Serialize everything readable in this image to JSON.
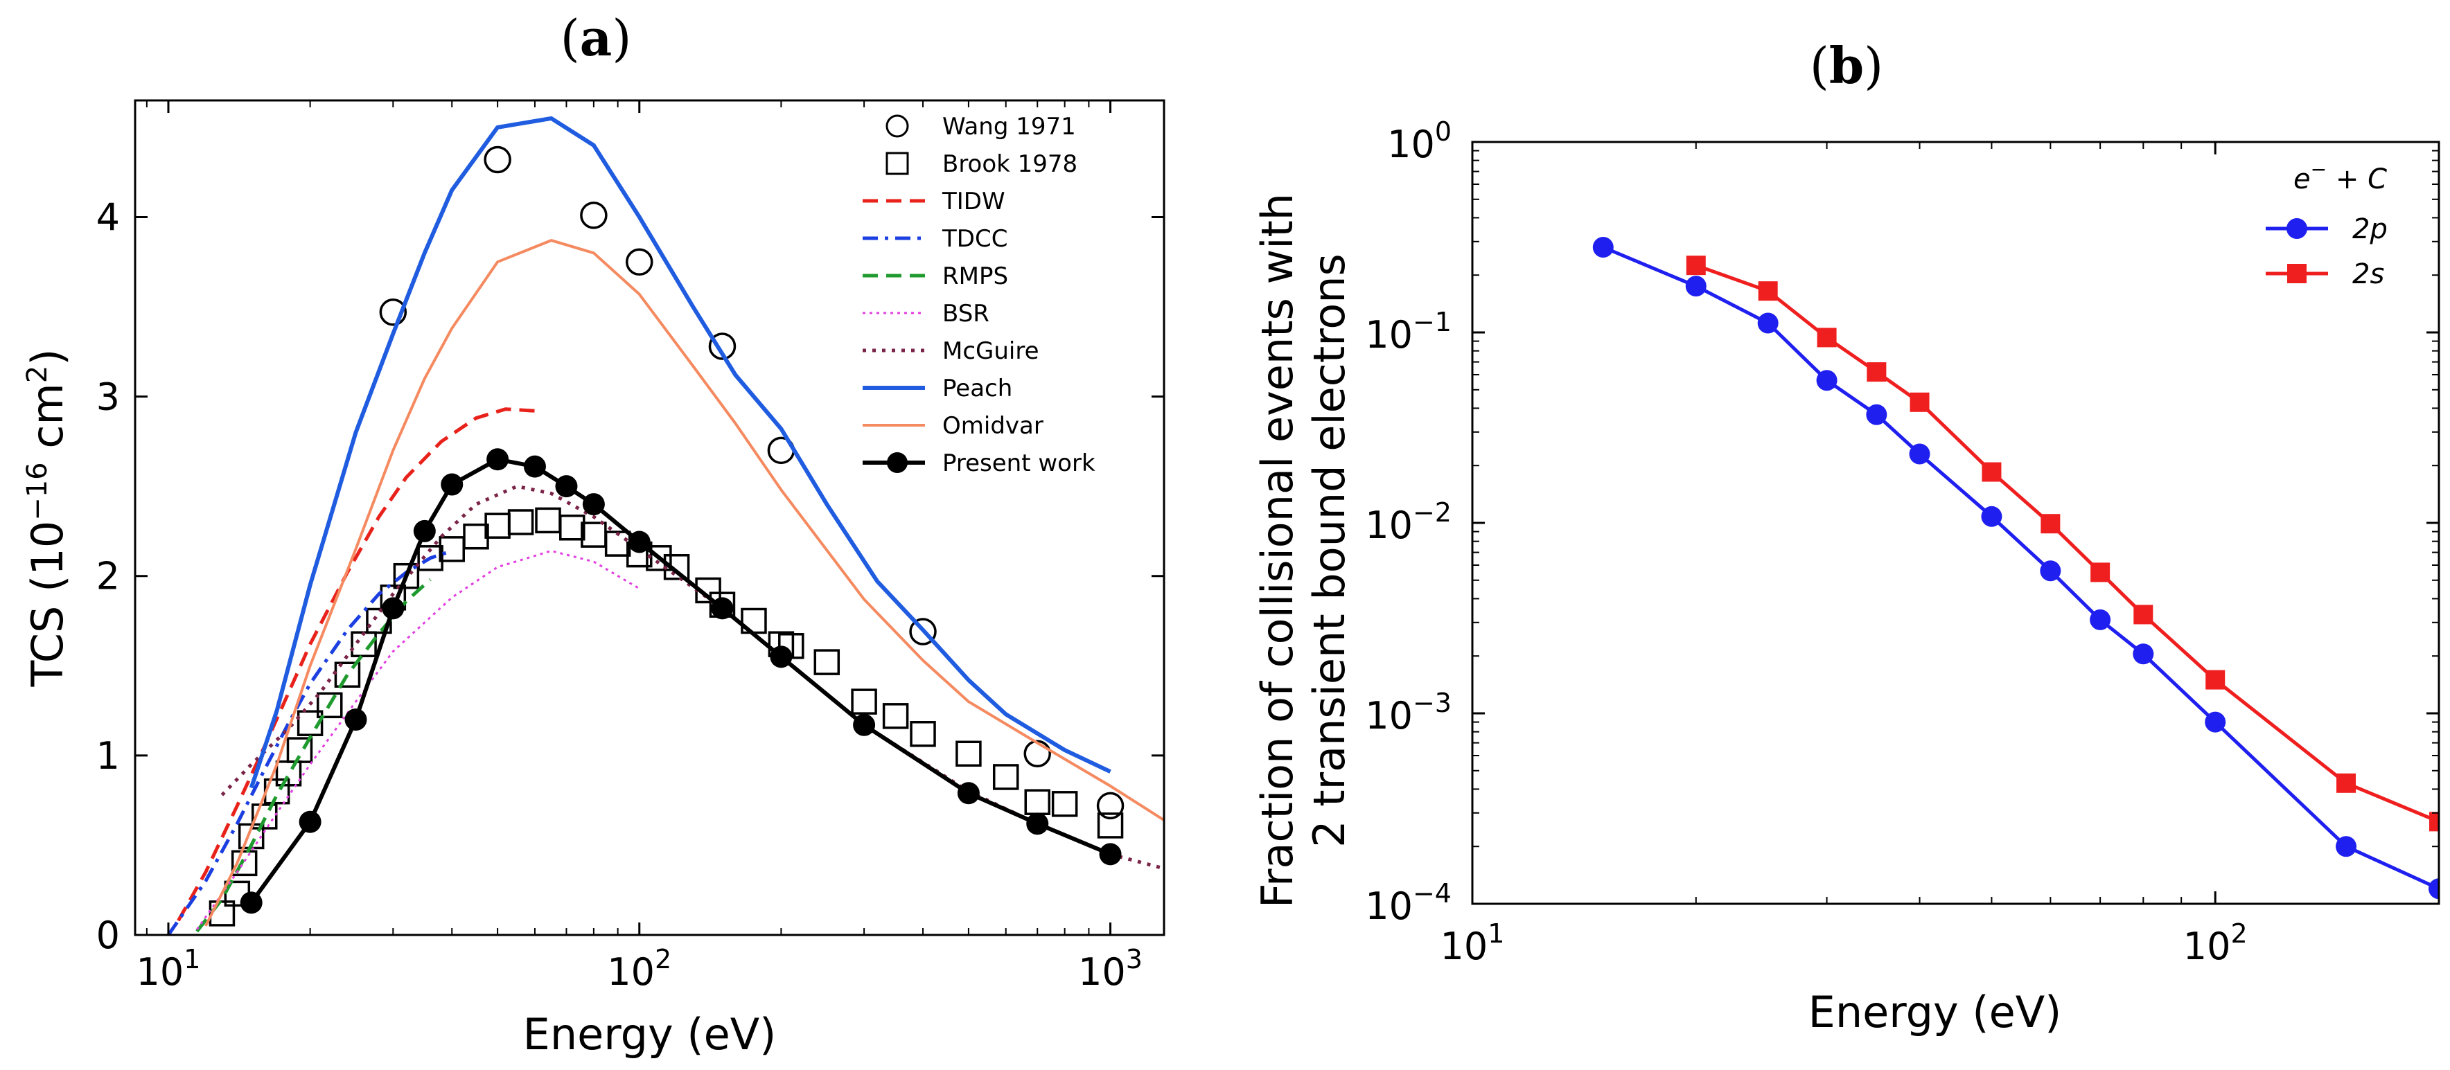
{
  "chart_data": [
    {
      "panel": "(a)",
      "panel_letter": "a",
      "type": "line",
      "xscale": "log",
      "xlim": [
        8.5,
        1300
      ],
      "ylim": [
        0,
        4.65
      ],
      "xlabel": "Energy (eV)",
      "ylabel_main": "TCS (10",
      "ylabel_exp1": "−16",
      "ylabel_mid": " cm",
      "ylabel_exp2": "2",
      "ylabel_end": ")",
      "xtick_labels": [
        {
          "value": 10,
          "base": "10",
          "exp": "1"
        },
        {
          "value": 100,
          "base": "10",
          "exp": "2"
        },
        {
          "value": 1000,
          "base": "10",
          "exp": "3"
        }
      ],
      "yticks": [
        0,
        1,
        2,
        3,
        4
      ],
      "ytick_labels": [
        "0",
        "1",
        "2",
        "3",
        "4"
      ],
      "legend_position": "top-right",
      "series": [
        {
          "name": "Wang 1971",
          "style": "open-circle",
          "color": "#000000",
          "x": [
            30,
            50,
            80,
            100,
            150,
            200,
            400,
            700,
            1000
          ],
          "y": [
            3.47,
            4.32,
            4.01,
            3.75,
            3.28,
            2.7,
            1.69,
            1.01,
            0.72
          ]
        },
        {
          "name": "Brook 1978",
          "style": "open-square",
          "color": "#000000",
          "x": [
            13,
            14,
            14.5,
            15,
            16,
            17,
            18,
            19,
            20,
            22,
            24,
            26,
            28,
            30,
            32,
            36,
            40,
            45,
            50,
            56,
            64,
            72,
            80,
            90,
            100,
            110,
            120,
            140,
            150,
            175,
            200,
            210,
            250,
            300,
            350,
            400,
            500,
            600,
            700,
            800,
            1000
          ],
          "y": [
            0.12,
            0.23,
            0.4,
            0.55,
            0.66,
            0.8,
            0.9,
            1.03,
            1.18,
            1.28,
            1.45,
            1.62,
            1.75,
            1.88,
            2.0,
            2.1,
            2.15,
            2.22,
            2.28,
            2.3,
            2.31,
            2.27,
            2.23,
            2.18,
            2.12,
            2.1,
            2.05,
            1.92,
            1.84,
            1.75,
            1.62,
            1.61,
            1.52,
            1.3,
            1.22,
            1.12,
            1.01,
            0.88,
            0.74,
            0.73,
            0.61
          ]
        },
        {
          "name": "TIDW",
          "style": "dashed",
          "color": "#e8221b",
          "x": [
            10.5,
            12,
            14,
            16,
            18,
            20,
            24,
            28,
            32,
            38,
            45,
            52,
            60
          ],
          "y": [
            0.08,
            0.35,
            0.72,
            1.05,
            1.35,
            1.62,
            2.02,
            2.33,
            2.55,
            2.75,
            2.88,
            2.93,
            2.92
          ]
        },
        {
          "name": "TDCC",
          "style": "dashdot",
          "color": "#1b3fe0",
          "x": [
            10,
            12,
            14,
            16,
            18,
            20,
            24,
            28,
            32,
            36,
            40
          ],
          "y": [
            0.0,
            0.3,
            0.62,
            0.92,
            1.18,
            1.4,
            1.7,
            1.9,
            2.02,
            2.1,
            2.14
          ]
        },
        {
          "name": "RMPS",
          "style": "dashed",
          "color": "#1f9a2e",
          "x": [
            11.5,
            13,
            15,
            17,
            20,
            24,
            28,
            32,
            36
          ],
          "y": [
            0.02,
            0.2,
            0.5,
            0.78,
            1.1,
            1.45,
            1.68,
            1.86,
            1.98
          ]
        },
        {
          "name": "BSR",
          "style": "dotted-fine",
          "color": "#e23ee0",
          "x": [
            11.5,
            14,
            17,
            20,
            25,
            30,
            40,
            50,
            65,
            80,
            100
          ],
          "y": [
            0.03,
            0.35,
            0.68,
            0.95,
            1.3,
            1.58,
            1.88,
            2.05,
            2.14,
            2.08,
            1.93
          ]
        },
        {
          "name": "McGuire",
          "style": "dotted",
          "color": "#7a2448",
          "x": [
            13,
            15,
            18,
            21,
            25,
            30,
            38,
            45,
            55,
            65,
            80,
            100,
            150,
            200,
            300,
            500,
            700,
            1000,
            1300
          ],
          "y": [
            0.78,
            0.95,
            1.15,
            1.35,
            1.62,
            1.9,
            2.22,
            2.4,
            2.5,
            2.46,
            2.33,
            2.15,
            1.82,
            1.55,
            1.17,
            0.8,
            0.62,
            0.45,
            0.37
          ]
        },
        {
          "name": "Peach",
          "style": "solid",
          "color": "#1f5ce0",
          "x": [
            15,
            17,
            20,
            25,
            30,
            35,
            40,
            50,
            65,
            80,
            100,
            130,
            160,
            200,
            250,
            320,
            400,
            500,
            600,
            800,
            1000
          ],
          "y": [
            0.82,
            1.25,
            1.95,
            2.8,
            3.35,
            3.8,
            4.15,
            4.5,
            4.55,
            4.4,
            4.0,
            3.5,
            3.12,
            2.82,
            2.4,
            1.97,
            1.7,
            1.42,
            1.23,
            1.03,
            0.91
          ]
        },
        {
          "name": "Omidvar",
          "style": "solid-thin",
          "color": "#f58a60",
          "x": [
            12,
            14,
            17,
            20,
            25,
            30,
            35,
            40,
            50,
            65,
            80,
            100,
            130,
            160,
            200,
            300,
            400,
            500,
            700,
            1000,
            1300
          ],
          "y": [
            0.05,
            0.4,
            0.95,
            1.5,
            2.15,
            2.7,
            3.1,
            3.38,
            3.75,
            3.87,
            3.8,
            3.57,
            3.17,
            2.85,
            2.48,
            1.87,
            1.53,
            1.3,
            1.07,
            0.83,
            0.64
          ]
        },
        {
          "name": "Present work",
          "style": "solid-filled-circle",
          "color": "#000000",
          "x": [
            15,
            20,
            25,
            30,
            35,
            40,
            50,
            60,
            70,
            80,
            100,
            150,
            200,
            300,
            500,
            700,
            1000
          ],
          "y": [
            0.18,
            0.63,
            1.2,
            1.82,
            2.25,
            2.51,
            2.65,
            2.61,
            2.5,
            2.4,
            2.19,
            1.82,
            1.55,
            1.17,
            0.79,
            0.62,
            0.45
          ]
        }
      ]
    },
    {
      "panel": "(b)",
      "panel_letter": "b",
      "type": "line",
      "xscale": "log",
      "yscale": "log",
      "xlim": [
        10,
        200
      ],
      "ylim": [
        0.0001,
        1
      ],
      "xlabel": "Energy (eV)",
      "ylabel_line1": "Fraction of collisional events with",
      "ylabel_line2": "2 transient bound electrons",
      "xtick_labels": [
        {
          "value": 10,
          "base": "10",
          "exp": "1"
        },
        {
          "value": 100,
          "base": "10",
          "exp": "2"
        }
      ],
      "ytick_labels": [
        {
          "value": 1,
          "base": "10",
          "exp": "0"
        },
        {
          "value": 0.1,
          "base": "10",
          "exp": "−1"
        },
        {
          "value": 0.01,
          "base": "10",
          "exp": "−2"
        },
        {
          "value": 0.001,
          "base": "10",
          "exp": "−3"
        },
        {
          "value": 0.0001,
          "base": "10",
          "exp": "−4"
        }
      ],
      "legend_position": "top-right",
      "legend_title_e": "e",
      "legend_title_sup": "−",
      "legend_title_rest": " + C",
      "series": [
        {
          "name": "2p",
          "marker": "circle",
          "color": "#1f1fef",
          "x": [
            15,
            20,
            25,
            30,
            35,
            40,
            50,
            60,
            70,
            80,
            100,
            150,
            200
          ],
          "y": [
            0.28,
            0.175,
            0.112,
            0.056,
            0.037,
            0.023,
            0.0108,
            0.0056,
            0.0031,
            0.00205,
            0.0009,
            0.0002,
            0.00012
          ]
        },
        {
          "name": "2s",
          "marker": "square",
          "color": "#ef1f1f",
          "x": [
            20,
            25,
            30,
            35,
            40,
            50,
            60,
            70,
            80,
            100,
            150,
            200
          ],
          "y": [
            0.225,
            0.165,
            0.094,
            0.062,
            0.043,
            0.0185,
            0.0099,
            0.0055,
            0.0033,
            0.0015,
            0.00043,
            0.00027
          ]
        }
      ]
    }
  ]
}
